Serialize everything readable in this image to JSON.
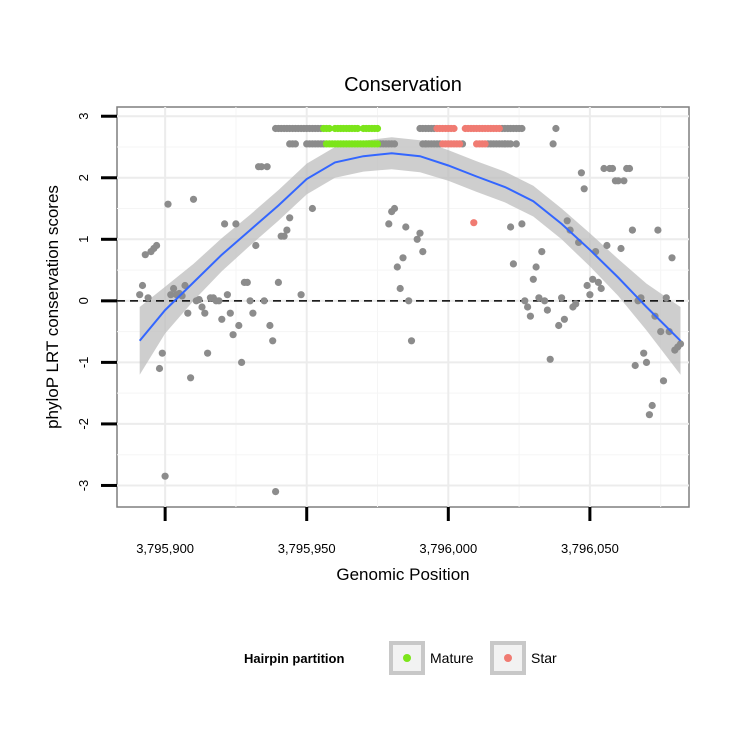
{
  "chart_data": {
    "type": "scatter",
    "title": "Conservation",
    "xlabel": "Genomic Position",
    "ylabel": "phyloP LRT conservation scores",
    "xlim": [
      3795883,
      3796085
    ],
    "ylim": [
      -3.35,
      3.15
    ],
    "x_ticks": [
      {
        "value": 3795900,
        "label": "3,795,900"
      },
      {
        "value": 3795950,
        "label": "3,795,950"
      },
      {
        "value": 3796000,
        "label": "3,796,000"
      },
      {
        "value": 3796050,
        "label": "3,796,050"
      }
    ],
    "y_ticks": [
      {
        "value": 3,
        "label": "3"
      },
      {
        "value": 2,
        "label": "2"
      },
      {
        "value": 1,
        "label": "1"
      },
      {
        "value": 0,
        "label": "0"
      },
      {
        "value": -1,
        "label": "-1"
      },
      {
        "value": -2,
        "label": "-2"
      },
      {
        "value": -3,
        "label": "-3"
      }
    ],
    "reference_line": {
      "y": 0,
      "style": "dashed"
    },
    "legend": {
      "title": "Hairpin partition",
      "position": "bottom",
      "entries": [
        {
          "name": "Mature",
          "color": "#7CE51A"
        },
        {
          "name": "Star",
          "color": "#F07B72"
        }
      ]
    },
    "series": [
      {
        "name": "Other",
        "color": "#8C8C8C",
        "points": [
          [
            3795891,
            0.1
          ],
          [
            3795892,
            0.25
          ],
          [
            3795893,
            0.75
          ],
          [
            3795894,
            0.05
          ],
          [
            3795895,
            0.8
          ],
          [
            3795896,
            0.85
          ],
          [
            3795897,
            0.9
          ],
          [
            3795898,
            -1.1
          ],
          [
            3795899,
            -0.85
          ],
          [
            3795900,
            -2.85
          ],
          [
            3795901,
            1.57
          ],
          [
            3795902,
            0.1
          ],
          [
            3795903,
            0.2
          ],
          [
            3795904,
            0.1
          ],
          [
            3795905,
            0.12
          ],
          [
            3795906,
            0.08
          ],
          [
            3795907,
            0.25
          ],
          [
            3795908,
            -0.2
          ],
          [
            3795909,
            -1.25
          ],
          [
            3795910,
            1.65
          ],
          [
            3795911,
            0.0
          ],
          [
            3795912,
            0.02
          ],
          [
            3795913,
            -0.1
          ],
          [
            3795914,
            -0.2
          ],
          [
            3795915,
            -0.85
          ],
          [
            3795916,
            0.05
          ],
          [
            3795917,
            0.05
          ],
          [
            3795918,
            0.0
          ],
          [
            3795919,
            0.0
          ],
          [
            3795920,
            -0.3
          ],
          [
            3795921,
            1.25
          ],
          [
            3795922,
            0.1
          ],
          [
            3795923,
            -0.2
          ],
          [
            3795924,
            -0.55
          ],
          [
            3795925,
            1.25
          ],
          [
            3795926,
            -0.4
          ],
          [
            3795927,
            -1.0
          ],
          [
            3795928,
            0.3
          ],
          [
            3795929,
            0.3
          ],
          [
            3795930,
            0.0
          ],
          [
            3795931,
            -0.2
          ],
          [
            3795932,
            0.9
          ],
          [
            3795933,
            2.18
          ],
          [
            3795934,
            2.18
          ],
          [
            3795935,
            0.0
          ],
          [
            3795936,
            2.18
          ],
          [
            3795937,
            -0.4
          ],
          [
            3795938,
            -0.65
          ],
          [
            3795939,
            -3.1
          ],
          [
            3795940,
            0.3
          ],
          [
            3795941,
            1.05
          ],
          [
            3795942,
            1.05
          ],
          [
            3795943,
            1.15
          ],
          [
            3795944,
            1.35
          ],
          [
            3795946,
            2.55
          ],
          [
            3795948,
            0.1
          ],
          [
            3795952,
            1.5
          ],
          [
            3795979,
            1.25
          ],
          [
            3795980,
            1.45
          ],
          [
            3795981,
            1.5
          ],
          [
            3795982,
            0.55
          ],
          [
            3795983,
            0.2
          ],
          [
            3795984,
            0.7
          ],
          [
            3795985,
            1.2
          ],
          [
            3795986,
            0.0
          ],
          [
            3795987,
            -0.65
          ],
          [
            3795989,
            1.0
          ],
          [
            3795990,
            1.1
          ],
          [
            3795991,
            0.8
          ],
          [
            3795992,
            2.55
          ],
          [
            3796005,
            2.55
          ],
          [
            3796020,
            2.55
          ],
          [
            3796022,
            1.2
          ],
          [
            3796023,
            0.6
          ],
          [
            3796024,
            2.55
          ],
          [
            3796026,
            1.25
          ],
          [
            3796027,
            0.0
          ],
          [
            3796028,
            -0.1
          ],
          [
            3796029,
            -0.25
          ],
          [
            3796030,
            0.35
          ],
          [
            3796031,
            0.55
          ],
          [
            3796032,
            0.05
          ],
          [
            3796033,
            0.8
          ],
          [
            3796034,
            0.0
          ],
          [
            3796035,
            -0.15
          ],
          [
            3796036,
            -0.95
          ],
          [
            3796037,
            2.55
          ],
          [
            3796038,
            2.8
          ],
          [
            3796039,
            -0.4
          ],
          [
            3796040,
            0.05
          ],
          [
            3796041,
            -0.3
          ],
          [
            3796042,
            1.3
          ],
          [
            3796043,
            1.15
          ],
          [
            3796044,
            -0.1
          ],
          [
            3796045,
            -0.05
          ],
          [
            3796046,
            0.95
          ],
          [
            3796047,
            2.08
          ],
          [
            3796048,
            1.82
          ],
          [
            3796049,
            0.25
          ],
          [
            3796050,
            0.1
          ],
          [
            3796051,
            0.35
          ],
          [
            3796052,
            0.8
          ],
          [
            3796053,
            0.3
          ],
          [
            3796054,
            0.2
          ],
          [
            3796055,
            2.15
          ],
          [
            3796056,
            0.9
          ],
          [
            3796057,
            2.15
          ],
          [
            3796058,
            2.15
          ],
          [
            3796059,
            1.95
          ],
          [
            3796060,
            1.95
          ],
          [
            3796061,
            0.85
          ],
          [
            3796062,
            1.95
          ],
          [
            3796063,
            2.15
          ],
          [
            3796064,
            2.15
          ],
          [
            3796065,
            1.15
          ],
          [
            3796066,
            -1.05
          ],
          [
            3796067,
            0.0
          ],
          [
            3796068,
            0.05
          ],
          [
            3796069,
            -0.85
          ],
          [
            3796070,
            -1.0
          ],
          [
            3796071,
            -1.85
          ],
          [
            3796072,
            -1.7
          ],
          [
            3796073,
            -0.25
          ],
          [
            3796074,
            1.15
          ],
          [
            3796075,
            -0.5
          ],
          [
            3796076,
            -1.3
          ],
          [
            3796077,
            0.05
          ],
          [
            3796078,
            -0.5
          ],
          [
            3796079,
            0.7
          ],
          [
            3796080,
            -0.8
          ],
          [
            3796081,
            -0.75
          ],
          [
            3796082,
            -0.7
          ],
          [
            3795939,
            2.8
          ],
          [
            3795940,
            2.8
          ],
          [
            3795941,
            2.8
          ],
          [
            3795942,
            2.8
          ],
          [
            3795943,
            2.8
          ],
          [
            3795944,
            2.8
          ],
          [
            3795945,
            2.8
          ],
          [
            3795946,
            2.8
          ],
          [
            3795947,
            2.8
          ],
          [
            3795948,
            2.8
          ],
          [
            3795949,
            2.8
          ],
          [
            3795950,
            2.8
          ],
          [
            3795951,
            2.8
          ],
          [
            3795952,
            2.8
          ],
          [
            3795953,
            2.8
          ],
          [
            3795954,
            2.8
          ],
          [
            3795955,
            2.8
          ],
          [
            3795944,
            2.55
          ],
          [
            3795945,
            2.55
          ],
          [
            3795950,
            2.55
          ],
          [
            3795951,
            2.55
          ],
          [
            3795952,
            2.55
          ],
          [
            3795953,
            2.55
          ],
          [
            3795954,
            2.55
          ],
          [
            3795955,
            2.55
          ],
          [
            3795956,
            2.55
          ],
          [
            3795990,
            2.8
          ],
          [
            3795991,
            2.8
          ],
          [
            3795992,
            2.8
          ],
          [
            3795993,
            2.8
          ],
          [
            3795994,
            2.8
          ],
          [
            3795995,
            2.8
          ],
          [
            3796019,
            2.8
          ],
          [
            3796020,
            2.8
          ],
          [
            3796021,
            2.8
          ],
          [
            3796022,
            2.8
          ],
          [
            3796023,
            2.8
          ],
          [
            3796024,
            2.8
          ],
          [
            3796025,
            2.8
          ],
          [
            3796026,
            2.8
          ],
          [
            3795976,
            2.55
          ],
          [
            3795977,
            2.55
          ],
          [
            3795978,
            2.55
          ],
          [
            3795979,
            2.55
          ],
          [
            3795980,
            2.55
          ],
          [
            3795981,
            2.55
          ],
          [
            3795991,
            2.55
          ],
          [
            3795992,
            2.55
          ],
          [
            3795993,
            2.55
          ],
          [
            3795994,
            2.55
          ],
          [
            3795995,
            2.55
          ],
          [
            3795996,
            2.55
          ],
          [
            3795997,
            2.55
          ],
          [
            3796014,
            2.55
          ],
          [
            3796015,
            2.55
          ],
          [
            3796016,
            2.55
          ],
          [
            3796017,
            2.55
          ],
          [
            3796018,
            2.55
          ],
          [
            3796019,
            2.55
          ],
          [
            3796020,
            2.55
          ],
          [
            3796021,
            2.55
          ],
          [
            3796022,
            2.55
          ]
        ]
      },
      {
        "name": "Mature",
        "color": "#7CE51A",
        "points": [
          [
            3795956,
            2.8
          ],
          [
            3795957,
            2.8
          ],
          [
            3795958,
            2.8
          ],
          [
            3795960,
            2.8
          ],
          [
            3795961,
            2.8
          ],
          [
            3795962,
            2.8
          ],
          [
            3795963,
            2.8
          ],
          [
            3795964,
            2.8
          ],
          [
            3795965,
            2.8
          ],
          [
            3795966,
            2.8
          ],
          [
            3795967,
            2.8
          ],
          [
            3795968,
            2.8
          ],
          [
            3795970,
            2.8
          ],
          [
            3795971,
            2.8
          ],
          [
            3795972,
            2.8
          ],
          [
            3795973,
            2.8
          ],
          [
            3795974,
            2.8
          ],
          [
            3795975,
            2.8
          ],
          [
            3795957,
            2.55
          ],
          [
            3795958,
            2.55
          ],
          [
            3795959,
            2.55
          ],
          [
            3795960,
            2.55
          ],
          [
            3795961,
            2.55
          ],
          [
            3795962,
            2.55
          ],
          [
            3795963,
            2.55
          ],
          [
            3795964,
            2.55
          ],
          [
            3795965,
            2.55
          ],
          [
            3795966,
            2.55
          ],
          [
            3795967,
            2.55
          ],
          [
            3795968,
            2.55
          ],
          [
            3795969,
            2.55
          ],
          [
            3795970,
            2.55
          ],
          [
            3795971,
            2.55
          ],
          [
            3795972,
            2.55
          ],
          [
            3795973,
            2.55
          ],
          [
            3795974,
            2.55
          ],
          [
            3795975,
            2.55
          ]
        ]
      },
      {
        "name": "Star",
        "color": "#F07B72",
        "points": [
          [
            3795996,
            2.8
          ],
          [
            3795997,
            2.8
          ],
          [
            3795998,
            2.8
          ],
          [
            3795999,
            2.8
          ],
          [
            3796000,
            2.8
          ],
          [
            3796001,
            2.8
          ],
          [
            3796002,
            2.8
          ],
          [
            3796006,
            2.8
          ],
          [
            3796007,
            2.8
          ],
          [
            3796008,
            2.8
          ],
          [
            3796009,
            2.8
          ],
          [
            3796010,
            2.8
          ],
          [
            3796011,
            2.8
          ],
          [
            3796012,
            2.8
          ],
          [
            3796013,
            2.8
          ],
          [
            3796014,
            2.8
          ],
          [
            3796015,
            2.8
          ],
          [
            3796016,
            2.8
          ],
          [
            3796017,
            2.8
          ],
          [
            3796018,
            2.8
          ],
          [
            3795998,
            2.55
          ],
          [
            3795999,
            2.55
          ],
          [
            3796000,
            2.55
          ],
          [
            3796001,
            2.55
          ],
          [
            3796002,
            2.55
          ],
          [
            3796003,
            2.55
          ],
          [
            3796004,
            2.55
          ],
          [
            3796010,
            2.55
          ],
          [
            3796011,
            2.55
          ],
          [
            3796012,
            2.55
          ],
          [
            3796013,
            2.55
          ],
          [
            3796009,
            1.27
          ]
        ]
      }
    ],
    "smooth": {
      "method": "loess",
      "color": "#3366FF",
      "band_color": "#BEBEBE",
      "points": [
        [
          3795891,
          -0.65,
          0.55
        ],
        [
          3795900,
          -0.15,
          0.38
        ],
        [
          3795910,
          0.3,
          0.3
        ],
        [
          3795920,
          0.75,
          0.27
        ],
        [
          3795930,
          1.15,
          0.25
        ],
        [
          3795940,
          1.55,
          0.25
        ],
        [
          3795950,
          1.98,
          0.25
        ],
        [
          3795960,
          2.25,
          0.25
        ],
        [
          3795970,
          2.35,
          0.25
        ],
        [
          3795980,
          2.4,
          0.26
        ],
        [
          3795990,
          2.35,
          0.26
        ],
        [
          3796000,
          2.2,
          0.25
        ],
        [
          3796010,
          2.02,
          0.25
        ],
        [
          3796020,
          1.85,
          0.25
        ],
        [
          3796030,
          1.62,
          0.25
        ],
        [
          3796040,
          1.25,
          0.25
        ],
        [
          3796050,
          0.83,
          0.27
        ],
        [
          3796060,
          0.38,
          0.3
        ],
        [
          3796070,
          -0.1,
          0.38
        ],
        [
          3796082,
          -0.65,
          0.55
        ]
      ]
    }
  }
}
